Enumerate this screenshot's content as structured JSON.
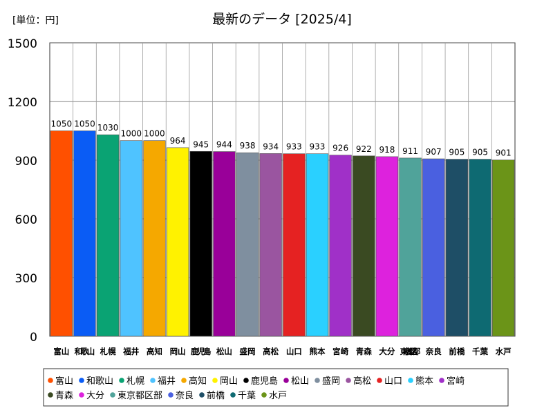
{
  "unit_label": "[単位：円]",
  "chart_data": {
    "type": "bar",
    "title": "最新のデータ [2025/4]",
    "xlabel": "",
    "ylabel": "",
    "ylim": [
      0,
      1500
    ],
    "yticks": [
      0,
      300,
      600,
      900,
      1200,
      1500
    ],
    "grid": true,
    "legend_position": "bottom",
    "categories": [
      "富山",
      "和歌山",
      "札幌",
      "福井",
      "高知",
      "岡山",
      "鹿児島",
      "松山",
      "盛岡",
      "高松",
      "山口",
      "熊本",
      "宮崎",
      "青森",
      "大分",
      "東京都区部",
      "奈良",
      "前橋",
      "千葉",
      "水戸"
    ],
    "values": [
      1050,
      1050,
      1030,
      1000,
      1000,
      964,
      945,
      944,
      938,
      934,
      933,
      933,
      926,
      922,
      918,
      911,
      907,
      905,
      905,
      901
    ],
    "colors": [
      "#ff5000",
      "#0a5cf5",
      "#0aa373",
      "#4fc3ff",
      "#f5a800",
      "#fff200",
      "#000000",
      "#990099",
      "#7f8f9f",
      "#9a55a0",
      "#e52222",
      "#2ad0ff",
      "#a030c8",
      "#3a4a22",
      "#dd22dd",
      "#50a39a",
      "#4a60e0",
      "#1e4e66",
      "#0e6a72",
      "#6b9418"
    ]
  }
}
